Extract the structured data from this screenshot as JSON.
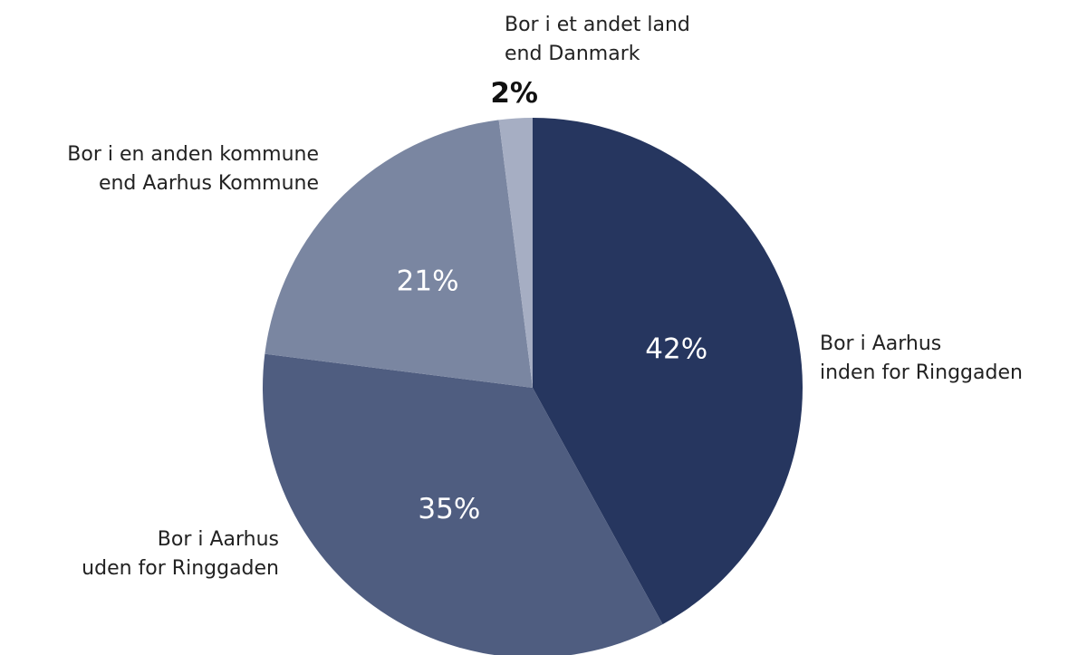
{
  "chart_data": {
    "type": "pie",
    "categories": [
      "Bor i Aarhus\ninden for Ringgaden",
      "Bor i Aarhus\nuden for Ringgaden",
      "Bor i en anden kommune\nend Aarhus Kommune",
      "Bor i et andet land\nend Danmark"
    ],
    "values": [
      42,
      35,
      21,
      2
    ],
    "value_labels": [
      "42%",
      "35%",
      "21%",
      "2%"
    ],
    "colors": [
      "#26365f",
      "#4f5d80",
      "#7a86a1",
      "#a6aec3"
    ]
  }
}
